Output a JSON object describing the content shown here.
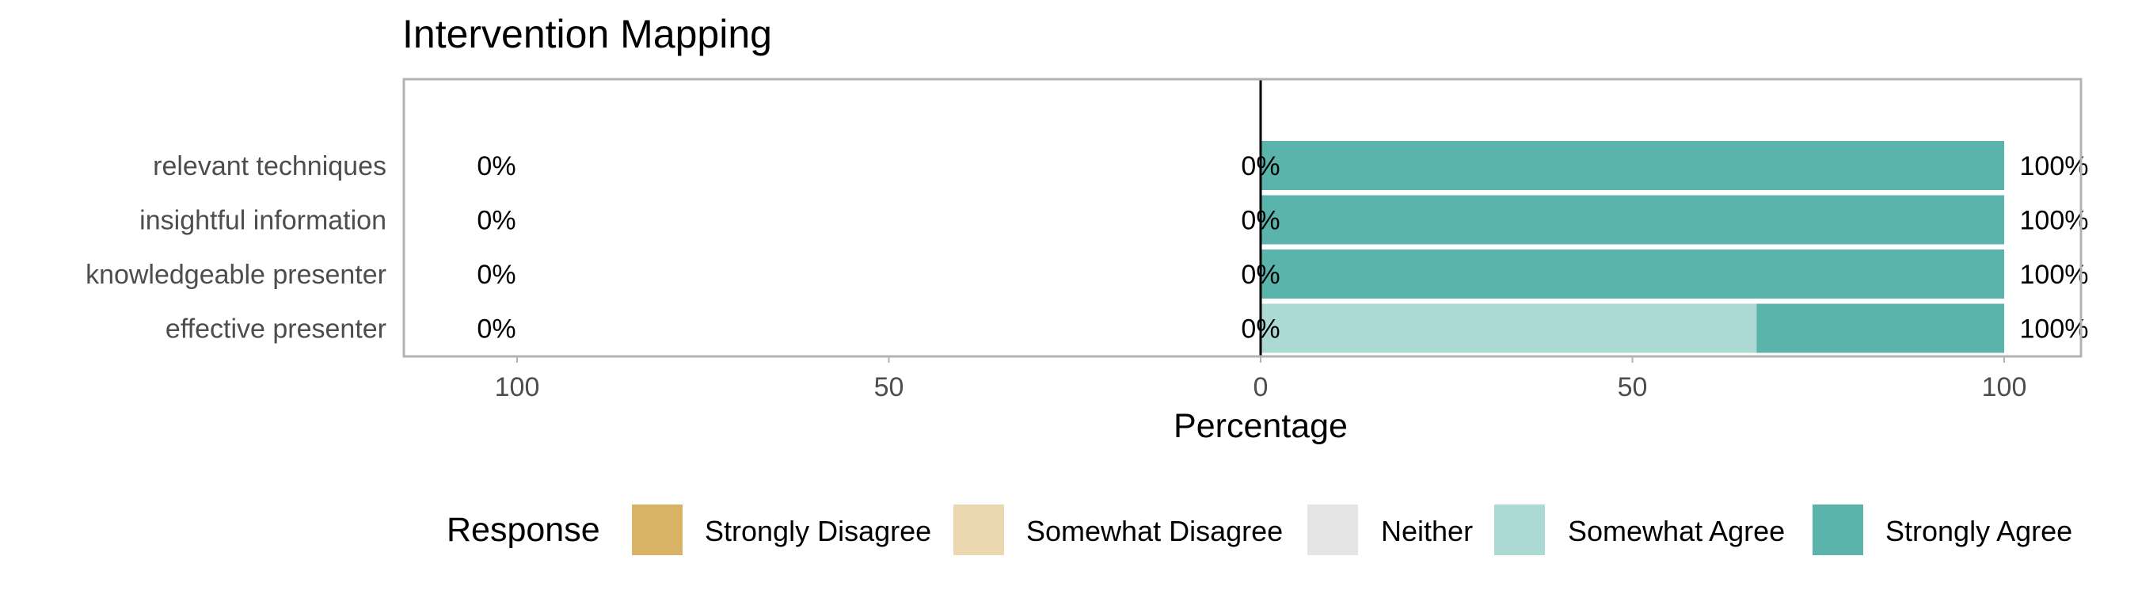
{
  "chart_data": {
    "type": "bar",
    "title": "Intervention Mapping",
    "xlabel": "Percentage",
    "ylabel": "",
    "xlim": [
      -100,
      100
    ],
    "x_ticks": [
      -100,
      -50,
      0,
      50,
      100
    ],
    "x_tick_labels": [
      "100",
      "50",
      "0",
      "50",
      "100"
    ],
    "categories": [
      "relevant techniques",
      "insightful information",
      "knowledgeable presenter",
      "effective presenter"
    ],
    "series": [
      {
        "name": "Strongly Disagree",
        "color": "#D8B365",
        "values": [
          0,
          0,
          0,
          0
        ]
      },
      {
        "name": "Somewhat Disagree",
        "color": "#EBD8B1",
        "values": [
          0,
          0,
          0,
          0
        ]
      },
      {
        "name": "Neither",
        "color": "#E5E5E5",
        "values": [
          0,
          0,
          0,
          0
        ]
      },
      {
        "name": "Somewhat Agree",
        "color": "#ADD9D5",
        "values": [
          0,
          0,
          0,
          66.7
        ]
      },
      {
        "name": "Strongly Agree",
        "color": "#5AB4AC",
        "values": [
          100,
          100,
          100,
          33.3
        ]
      }
    ],
    "left_labels": [
      "0%",
      "0%",
      "0%",
      "0%"
    ],
    "center_labels": [
      "0%",
      "0%",
      "0%",
      "0%"
    ],
    "right_labels": [
      "100%",
      "100%",
      "100%",
      "100%"
    ],
    "legend_title": "Response",
    "legend_position": "bottom",
    "grid": true
  }
}
